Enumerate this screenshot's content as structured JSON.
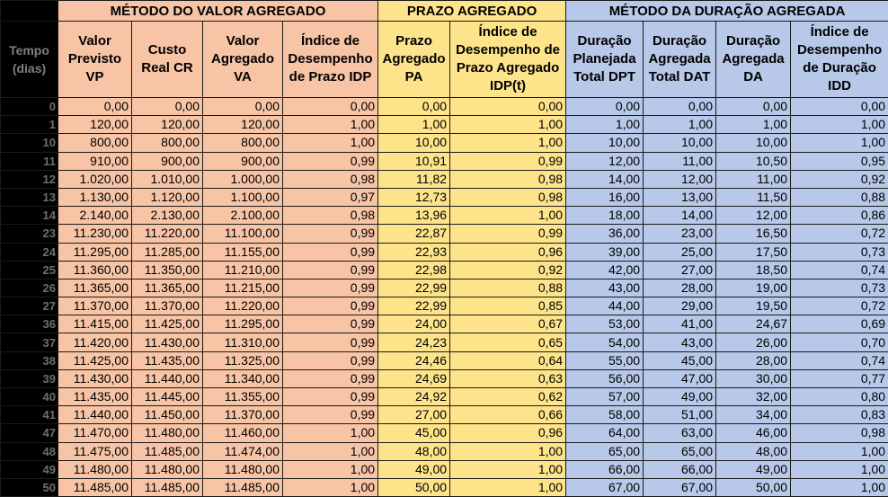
{
  "groups": {
    "ev": "MÉTODO DO VALOR AGREGADO",
    "pa": "PRAZO AGREGADO",
    "du": "MÉTODO DA DURAÇÃO AGREGADA"
  },
  "headers": {
    "tempo": "Tempo (dias)",
    "vp": "Valor Previsto VP",
    "cr": "Custo Real CR",
    "va": "Valor Agregado VA",
    "idp": "Índice de Desempenho de Prazo IDP",
    "pa": "Prazo Agregado PA",
    "idpt": "Índice de Desempenho de Prazo Agregado IDP(t)",
    "dpt": "Duração Planejada Total DPT",
    "dat": "Duração Agregada Total DAT",
    "da": "Duração Agregada DA",
    "idd": "Índice de Desempenho de Duração IDD"
  },
  "rows": [
    [
      "0",
      "0,00",
      "0,00",
      "0,00",
      "0,00",
      "0,00",
      "0,00",
      "0,00",
      "0,00",
      "0,00",
      "0,00"
    ],
    [
      "1",
      "120,00",
      "120,00",
      "120,00",
      "1,00",
      "1,00",
      "1,00",
      "1,00",
      "1,00",
      "1,00",
      "1,00"
    ],
    [
      "10",
      "800,00",
      "800,00",
      "800,00",
      "1,00",
      "10,00",
      "1,00",
      "10,00",
      "10,00",
      "10,00",
      "1,00"
    ],
    [
      "11",
      "910,00",
      "900,00",
      "900,00",
      "0,99",
      "10,91",
      "0,99",
      "12,00",
      "11,00",
      "10,50",
      "0,95"
    ],
    [
      "12",
      "1.020,00",
      "1.010,00",
      "1.000,00",
      "0,98",
      "11,82",
      "0,98",
      "14,00",
      "12,00",
      "11,00",
      "0,92"
    ],
    [
      "13",
      "1.130,00",
      "1.120,00",
      "1.100,00",
      "0,97",
      "12,73",
      "0,98",
      "16,00",
      "13,00",
      "11,50",
      "0,88"
    ],
    [
      "14",
      "2.140,00",
      "2.130,00",
      "2.100,00",
      "0,98",
      "13,96",
      "1,00",
      "18,00",
      "14,00",
      "12,00",
      "0,86"
    ],
    [
      "23",
      "11.230,00",
      "11.220,00",
      "11.100,00",
      "0,99",
      "22,87",
      "0,99",
      "36,00",
      "23,00",
      "16,50",
      "0,72"
    ],
    [
      "24",
      "11.295,00",
      "11.285,00",
      "11.155,00",
      "0,99",
      "22,93",
      "0,96",
      "39,00",
      "25,00",
      "17,50",
      "0,73"
    ],
    [
      "25",
      "11.360,00",
      "11.350,00",
      "11.210,00",
      "0,99",
      "22,98",
      "0,92",
      "42,00",
      "27,00",
      "18,50",
      "0,74"
    ],
    [
      "26",
      "11.365,00",
      "11.365,00",
      "11.215,00",
      "0,99",
      "22,99",
      "0,88",
      "43,00",
      "28,00",
      "19,00",
      "0,73"
    ],
    [
      "27",
      "11.370,00",
      "11.370,00",
      "11.220,00",
      "0,99",
      "22,99",
      "0,85",
      "44,00",
      "29,00",
      "19,50",
      "0,72"
    ],
    [
      "36",
      "11.415,00",
      "11.425,00",
      "11.295,00",
      "0,99",
      "24,00",
      "0,67",
      "53,00",
      "41,00",
      "24,67",
      "0,69"
    ],
    [
      "37",
      "11.420,00",
      "11.430,00",
      "11.310,00",
      "0,99",
      "24,23",
      "0,65",
      "54,00",
      "43,00",
      "26,00",
      "0,70"
    ],
    [
      "38",
      "11.425,00",
      "11.435,00",
      "11.325,00",
      "0,99",
      "24,46",
      "0,64",
      "55,00",
      "45,00",
      "28,00",
      "0,74"
    ],
    [
      "39",
      "11.430,00",
      "11.440,00",
      "11.340,00",
      "0,99",
      "24,69",
      "0,63",
      "56,00",
      "47,00",
      "30,00",
      "0,77"
    ],
    [
      "40",
      "11.435,00",
      "11.445,00",
      "11.355,00",
      "0,99",
      "24,92",
      "0,62",
      "57,00",
      "49,00",
      "32,00",
      "0,80"
    ],
    [
      "41",
      "11.440,00",
      "11.450,00",
      "11.370,00",
      "0,99",
      "27,00",
      "0,66",
      "58,00",
      "51,00",
      "34,00",
      "0,83"
    ],
    [
      "47",
      "11.470,00",
      "11.480,00",
      "11.460,00",
      "1,00",
      "45,00",
      "0,96",
      "64,00",
      "63,00",
      "46,00",
      "0,98"
    ],
    [
      "48",
      "11.475,00",
      "11.485,00",
      "11.474,00",
      "1,00",
      "48,00",
      "1,00",
      "65,00",
      "65,00",
      "48,00",
      "1,00"
    ],
    [
      "49",
      "11.480,00",
      "11.480,00",
      "11.480,00",
      "1,00",
      "49,00",
      "1,00",
      "66,00",
      "66,00",
      "49,00",
      "1,00"
    ],
    [
      "50",
      "11.485,00",
      "11.485,00",
      "11.485,00",
      "1,00",
      "50,00",
      "1,00",
      "67,00",
      "67,00",
      "50,00",
      "1,00"
    ]
  ],
  "colors": {
    "ev": "#f7c4a5",
    "pa": "#fde48a",
    "du": "#b7c8e8",
    "background": "#000000"
  }
}
